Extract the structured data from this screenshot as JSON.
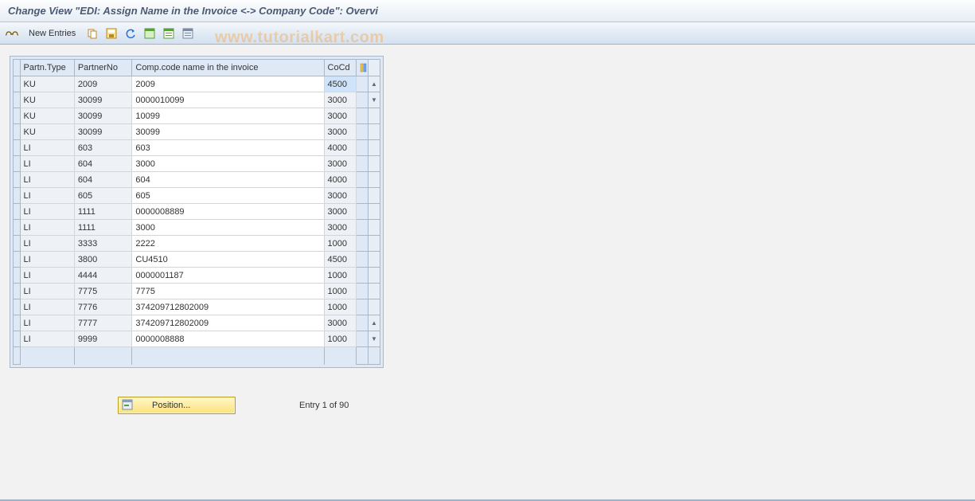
{
  "title": "Change View \"EDI: Assign Name in the Invoice <-> Company Code\": Overvi",
  "toolbar": {
    "new_entries_label": "New Entries"
  },
  "watermark": "www.tutorialkart.com",
  "table": {
    "columns": {
      "partn_type": "Partn.Type",
      "partner_no": "PartnerNo",
      "comp_name": "Comp.code name in the invoice",
      "cocd": "CoCd"
    },
    "rows": [
      {
        "ptype": "KU",
        "pno": "2009",
        "name": "2009",
        "cocd": "4500",
        "sel": true
      },
      {
        "ptype": "KU",
        "pno": "30099",
        "name": "0000010099",
        "cocd": "3000"
      },
      {
        "ptype": "KU",
        "pno": "30099",
        "name": "10099",
        "cocd": "3000"
      },
      {
        "ptype": "KU",
        "pno": "30099",
        "name": "30099",
        "cocd": "3000"
      },
      {
        "ptype": "LI",
        "pno": "603",
        "name": "603",
        "cocd": "4000"
      },
      {
        "ptype": "LI",
        "pno": "604",
        "name": "3000",
        "cocd": "3000"
      },
      {
        "ptype": "LI",
        "pno": "604",
        "name": "604",
        "cocd": "4000"
      },
      {
        "ptype": "LI",
        "pno": "605",
        "name": "605",
        "cocd": "3000"
      },
      {
        "ptype": "LI",
        "pno": "1111",
        "name": "0000008889",
        "cocd": "3000"
      },
      {
        "ptype": "LI",
        "pno": "1111",
        "name": "3000",
        "cocd": "3000"
      },
      {
        "ptype": "LI",
        "pno": "3333",
        "name": "2222",
        "cocd": "1000"
      },
      {
        "ptype": "LI",
        "pno": "3800",
        "name": "CU4510",
        "cocd": "4500"
      },
      {
        "ptype": "LI",
        "pno": "4444",
        "name": "0000001187",
        "cocd": "1000"
      },
      {
        "ptype": "LI",
        "pno": "7775",
        "name": "7775",
        "cocd": "1000"
      },
      {
        "ptype": "LI",
        "pno": "7776",
        "name": "374209712802009",
        "cocd": "1000"
      },
      {
        "ptype": "LI",
        "pno": "7777",
        "name": "374209712802009",
        "cocd": "3000"
      },
      {
        "ptype": "LI",
        "pno": "9999",
        "name": "0000008888",
        "cocd": "1000"
      }
    ]
  },
  "position_button": "Position...",
  "entry_status": "Entry 1 of 90",
  "colors": {
    "header_bg": "#dfe9f5",
    "border": "#a9b8c8",
    "toolbar_grad_top": "#f5f8fc",
    "toolbar_grad_bot": "#d4e1f0",
    "watermark": "rgba(255,140,0,0.30)"
  }
}
